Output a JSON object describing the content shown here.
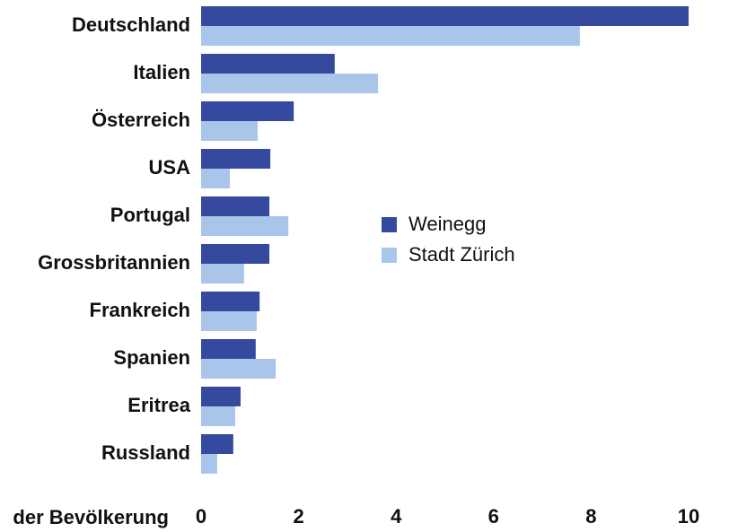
{
  "chart_data": {
    "type": "bar",
    "orientation": "horizontal",
    "categories": [
      "Deutschland",
      "Italien",
      "Österreich",
      "USA",
      "Portugal",
      "Grossbritannien",
      "Frankreich",
      "Spanien",
      "Eritrea",
      "Russland"
    ],
    "series": [
      {
        "name": "Weinegg",
        "color": "#354a9e",
        "values": [
          10.0,
          2.74,
          1.9,
          1.42,
          1.4,
          1.4,
          1.2,
          1.12,
          0.81,
          0.66
        ]
      },
      {
        "name": "Stadt Zürich",
        "color": "#a9c6ea",
        "values": [
          7.77,
          3.63,
          1.16,
          0.59,
          1.79,
          0.88,
          1.14,
          1.53,
          0.7,
          0.33
        ]
      }
    ],
    "xlabel": "der Bevölkerung",
    "xlim": [
      0,
      10
    ],
    "xticks": [
      0,
      2,
      4,
      6,
      8,
      10
    ],
    "grid": false,
    "legend": "center"
  }
}
